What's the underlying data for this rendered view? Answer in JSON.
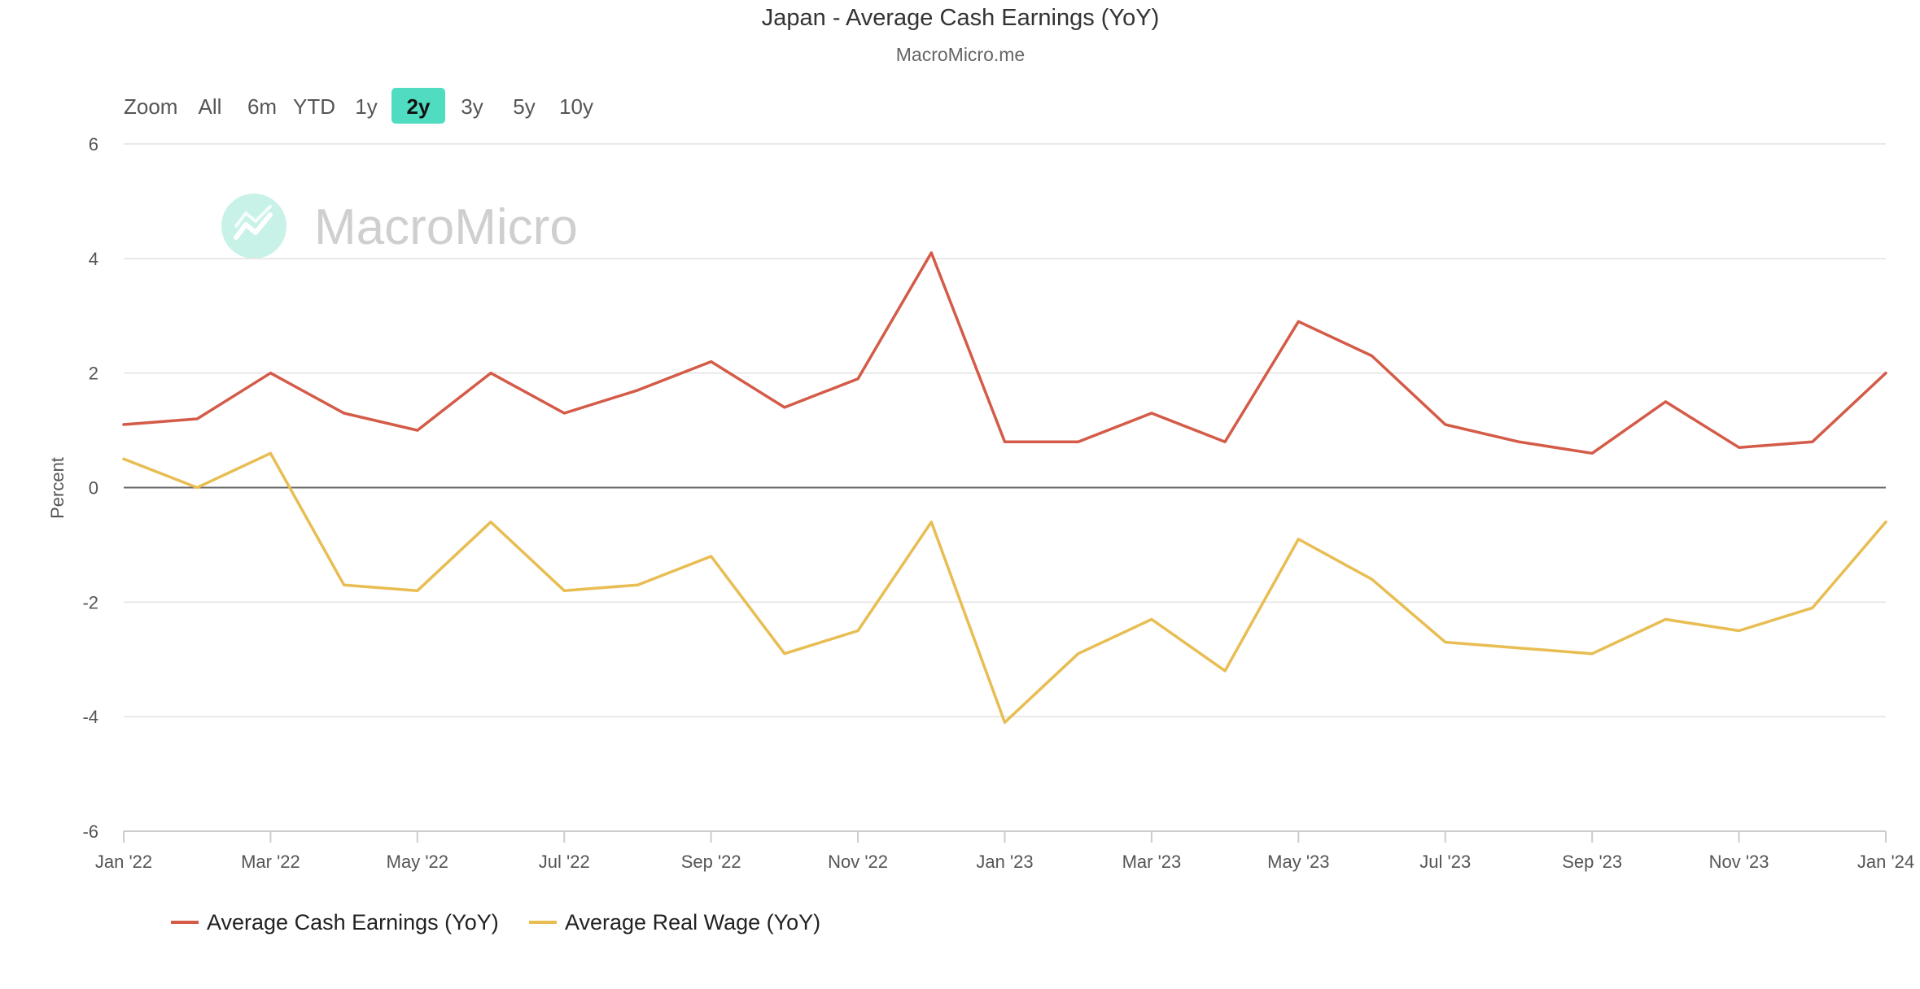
{
  "chart_data": {
    "type": "line",
    "title": "Japan - Average Cash Earnings (YoY)",
    "subtitle": "MacroMicro.me",
    "watermark": "MacroMicro",
    "ylabel": "Percent",
    "ylim": [
      -6,
      6
    ],
    "yticks": [
      6,
      4,
      2,
      0,
      -2,
      -4,
      -6
    ],
    "grid": true,
    "legend_position": "bottom-left",
    "x": [
      "2022-01",
      "2022-02",
      "2022-03",
      "2022-04",
      "2022-05",
      "2022-06",
      "2022-07",
      "2022-08",
      "2022-09",
      "2022-10",
      "2022-11",
      "2022-12",
      "2023-01",
      "2023-02",
      "2023-03",
      "2023-04",
      "2023-05",
      "2023-06",
      "2023-07",
      "2023-08",
      "2023-09",
      "2023-10",
      "2023-11",
      "2023-12",
      "2024-01"
    ],
    "xtick_labels": [
      {
        "x": "2022-01",
        "label": "Jan '22"
      },
      {
        "x": "2022-03",
        "label": "Mar '22"
      },
      {
        "x": "2022-05",
        "label": "May '22"
      },
      {
        "x": "2022-07",
        "label": "Jul '22"
      },
      {
        "x": "2022-09",
        "label": "Sep '22"
      },
      {
        "x": "2022-11",
        "label": "Nov '22"
      },
      {
        "x": "2023-01",
        "label": "Jan '23"
      },
      {
        "x": "2023-03",
        "label": "Mar '23"
      },
      {
        "x": "2023-05",
        "label": "May '23"
      },
      {
        "x": "2023-07",
        "label": "Jul '23"
      },
      {
        "x": "2023-09",
        "label": "Sep '23"
      },
      {
        "x": "2023-11",
        "label": "Nov '23"
      },
      {
        "x": "2024-01",
        "label": "Jan '24"
      }
    ],
    "series": [
      {
        "name": "Average Cash Earnings (YoY)",
        "color": "#d45b48",
        "values": [
          1.1,
          1.2,
          2.0,
          1.3,
          1.0,
          2.0,
          1.3,
          1.7,
          2.2,
          1.4,
          1.9,
          4.1,
          0.8,
          0.8,
          1.3,
          0.8,
          2.9,
          2.3,
          1.1,
          0.8,
          0.6,
          1.5,
          0.7,
          0.8,
          2.0
        ]
      },
      {
        "name": "Average Real Wage (YoY)",
        "color": "#e8bd52",
        "values": [
          0.5,
          0.0,
          0.6,
          -1.7,
          -1.8,
          -0.6,
          -1.8,
          -1.7,
          -1.2,
          -2.9,
          -2.5,
          -0.6,
          -4.1,
          -2.9,
          -2.3,
          -3.2,
          -0.9,
          -1.6,
          -2.7,
          -2.8,
          -2.9,
          -2.3,
          -2.5,
          -2.1,
          -0.6
        ]
      }
    ]
  },
  "range_selector": {
    "zoom_label": "Zoom",
    "buttons": [
      "All",
      "6m",
      "YTD",
      "1y",
      "2y",
      "3y",
      "5y",
      "10y"
    ],
    "active": "2y",
    "active_color": "#4fdcc0"
  }
}
